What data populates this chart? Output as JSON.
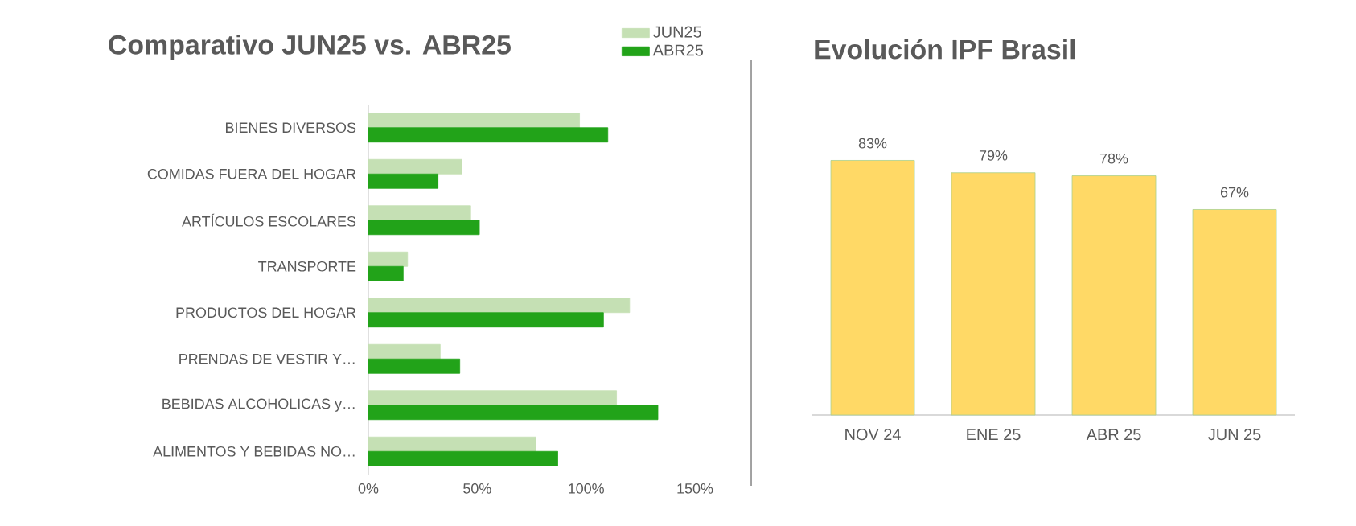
{
  "chart_data": [
    {
      "type": "bar",
      "orientation": "horizontal",
      "title": "Comparativo JUN25 vs. ABR25",
      "categories": [
        "BIENES DIVERSOS",
        "COMIDAS FUERA DEL HOGAR",
        "ARTÍCULOS ESCOLARES",
        "TRANSPORTE",
        "PRODUCTOS DEL HOGAR",
        "PRENDAS DE VESTIR Y…",
        "BEBIDAS ALCOHOLICAS y…",
        "ALIMENTOS Y BEBIDAS NO…"
      ],
      "series": [
        {
          "name": "JUN25",
          "color": "#c5e0b4",
          "values": [
            97,
            43,
            47,
            18,
            120,
            33,
            114,
            77
          ]
        },
        {
          "name": "ABR25",
          "color": "#22a319",
          "values": [
            110,
            32,
            51,
            16,
            108,
            42,
            133,
            87
          ]
        }
      ],
      "xlim": [
        0,
        150
      ],
      "xticks": [
        {
          "value": 0,
          "label": "0%"
        },
        {
          "value": 50,
          "label": "50%"
        },
        {
          "value": 100,
          "label": "100%"
        },
        {
          "value": 150,
          "label": "150%"
        }
      ],
      "legend": "top right"
    },
    {
      "type": "bar",
      "title": "Evolución IPF Brasil",
      "categories": [
        "NOV 24",
        "ENE 25",
        "ABR 25",
        "JUN 25"
      ],
      "values": [
        83,
        79,
        78,
        67
      ],
      "color": "#ffd966",
      "value_labels": [
        "83%",
        "79%",
        "78%",
        "67%"
      ],
      "tick_labels": "x"
    }
  ]
}
